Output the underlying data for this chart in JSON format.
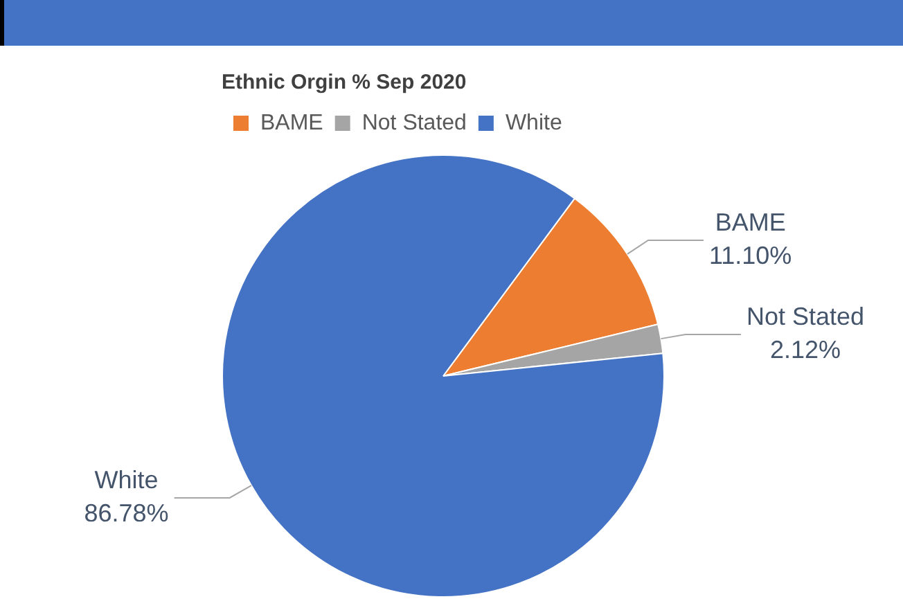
{
  "chart_data": {
    "type": "pie",
    "title": "Ethnic Orgin % Sep 2020",
    "categories": [
      "BAME",
      "Not Stated",
      "White"
    ],
    "values": [
      11.1,
      2.12,
      86.78
    ],
    "colors": [
      "#ed7d31",
      "#a5a5a5",
      "#4472c4"
    ],
    "value_labels": [
      "11.10%",
      "2.12%",
      "86.78%"
    ],
    "legend": "top left"
  }
}
